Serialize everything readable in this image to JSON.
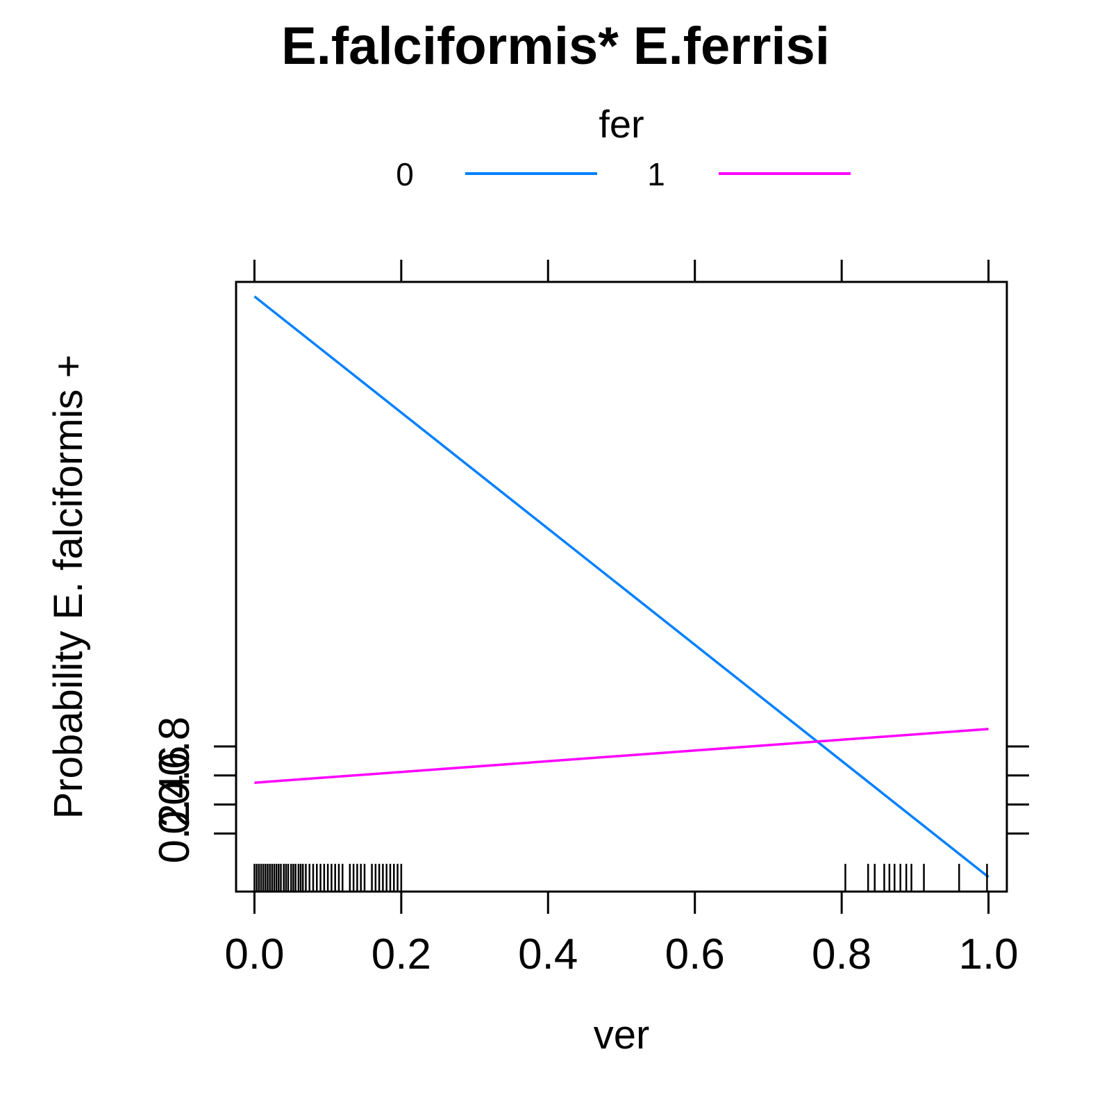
{
  "chart_data": {
    "type": "line",
    "title": "E.falciformis* E.ferrisi",
    "xlabel": "ver",
    "ylabel": "Probability E. falciformis +",
    "legend": {
      "title": "fer",
      "placement": "top",
      "entries": [
        {
          "label": "0",
          "color": "#0080ff"
        },
        {
          "label": "1",
          "color": "#ff00ff"
        }
      ]
    },
    "xlim": [
      -0.025,
      1.025
    ],
    "ylim": [
      -0.2,
      4.0
    ],
    "xticks": [
      "0.0",
      "0.2",
      "0.4",
      "0.6",
      "0.8",
      "1.0"
    ],
    "xtick_values": [
      0,
      0.2,
      0.4,
      0.6,
      0.8,
      1.0
    ],
    "yticks": [
      "0.2",
      "0.4",
      "0.6",
      "0.8"
    ],
    "ytick_values": [
      0.2,
      0.4,
      0.6,
      0.8
    ],
    "series": [
      {
        "name": "0",
        "color": "#0080ff",
        "x": [
          0,
          1
        ],
        "y": [
          3.9,
          -0.1
        ]
      },
      {
        "name": "1",
        "color": "#ff00ff",
        "x": [
          0,
          1
        ],
        "y": [
          0.55,
          0.92
        ]
      }
    ],
    "rug_x": [
      0.0,
      0.003,
      0.006,
      0.009,
      0.012,
      0.015,
      0.018,
      0.021,
      0.024,
      0.027,
      0.03,
      0.033,
      0.036,
      0.04,
      0.043,
      0.046,
      0.05,
      0.053,
      0.056,
      0.06,
      0.063,
      0.066,
      0.07,
      0.075,
      0.08,
      0.085,
      0.09,
      0.095,
      0.1,
      0.105,
      0.11,
      0.115,
      0.12,
      0.13,
      0.135,
      0.14,
      0.145,
      0.15,
      0.16,
      0.165,
      0.17,
      0.175,
      0.18,
      0.185,
      0.19,
      0.195,
      0.2,
      0.805,
      0.836,
      0.845,
      0.858,
      0.865,
      0.872,
      0.88,
      0.888,
      0.895,
      0.912,
      0.96,
      0.998
    ],
    "grid": false
  }
}
